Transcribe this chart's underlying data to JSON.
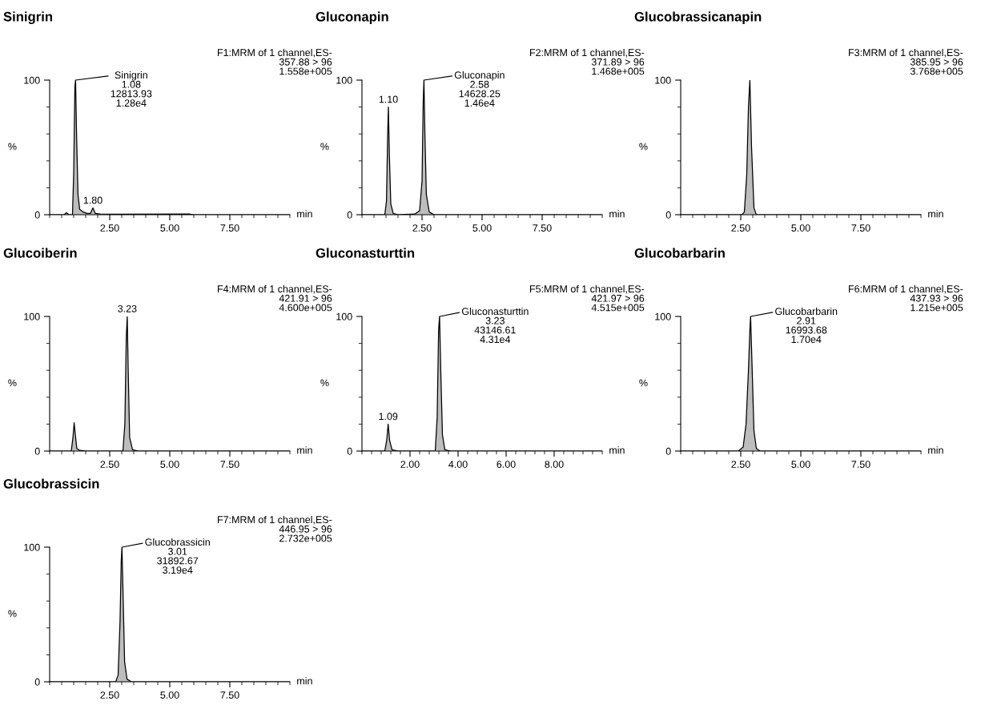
{
  "chart_data": [
    {
      "type": "area",
      "title": "Sinigrin",
      "subtitle": "F1:MRM of 1 channel,ES-\n357.88 > 96\n1.558e+005",
      "xlabel": "min",
      "ylabel": "%",
      "color": "#bdbdbd",
      "xlim": [
        0,
        10
      ],
      "xticks": [
        {
          "value": 2.5,
          "label": "2.50"
        },
        {
          "value": 5,
          "label": "5.00"
        },
        {
          "value": 7.5,
          "label": "7.50"
        }
      ],
      "ylim": [
        0,
        100
      ],
      "yticks": [
        0,
        100
      ],
      "x": [
        0,
        0.6,
        0.7,
        0.8,
        0.95,
        1.0,
        1.05,
        1.08,
        1.12,
        1.18,
        1.25,
        1.4,
        1.55,
        1.7,
        1.8,
        1.9,
        2.1,
        3.0,
        5.8,
        6.0,
        10
      ],
      "values": [
        0,
        0,
        1.5,
        0,
        0,
        30,
        95,
        100,
        60,
        15,
        4,
        2,
        1,
        1,
        5,
        1,
        0.5,
        0.3,
        0.5,
        0,
        0
      ],
      "annotations": [
        {
          "text": "Sinigrin\n1.08\n12813.93\n1.28e4",
          "x": 1.08,
          "y": 100
        },
        {
          "text": "1.80",
          "x": 1.8,
          "y": 5
        }
      ]
    },
    {
      "type": "area",
      "title": "Gluconapin",
      "subtitle": "F2:MRM of 1 channel,ES-\n371.89 > 96\n1.468e+005",
      "xlabel": "min",
      "ylabel": "%",
      "color": "#bdbdbd",
      "xlim": [
        0,
        10
      ],
      "xticks": [
        {
          "value": 2.5,
          "label": "2.50"
        },
        {
          "value": 5,
          "label": "5.00"
        },
        {
          "value": 7.5,
          "label": "7.50"
        }
      ],
      "ylim": [
        0,
        100
      ],
      "yticks": [
        0,
        100
      ],
      "x": [
        0,
        0.95,
        1.02,
        1.07,
        1.1,
        1.14,
        1.2,
        1.3,
        1.5,
        2.2,
        2.4,
        2.5,
        2.55,
        2.58,
        2.62,
        2.68,
        2.8,
        3.0,
        10
      ],
      "values": [
        0,
        0,
        10,
        60,
        80,
        45,
        8,
        1,
        0,
        0.5,
        3,
        25,
        85,
        100,
        60,
        15,
        2,
        0,
        0
      ],
      "annotations": [
        {
          "text": "1.10",
          "x": 1.1,
          "y": 80
        },
        {
          "text": "Gluconapin\n2.58\n14628.25\n1.46e4",
          "x": 2.58,
          "y": 100
        }
      ]
    },
    {
      "type": "area",
      "title": "Glucobrassicanapin",
      "subtitle": "F3:MRM of 1 channel,ES-\n385.95 > 96\n3.768e+005",
      "xlabel": "min",
      "ylabel": "%",
      "color": "#bdbdbd",
      "xlim": [
        0,
        10
      ],
      "xticks": [
        {
          "value": 2.5,
          "label": "2.50"
        },
        {
          "value": 5,
          "label": "5.00"
        },
        {
          "value": 7.5,
          "label": "7.50"
        }
      ],
      "ylim": [
        0,
        100
      ],
      "yticks": [
        0,
        100
      ],
      "x": [
        0,
        2.55,
        2.65,
        2.75,
        2.82,
        2.88,
        2.95,
        3.05,
        3.15,
        10
      ],
      "values": [
        0,
        0,
        2,
        30,
        80,
        100,
        50,
        5,
        0,
        0
      ]
    },
    {
      "type": "area",
      "title": "Glucoiberin",
      "subtitle": "F4:MRM of 1 channel,ES-\n421.91 > 96\n4.600e+005",
      "xlabel": "min",
      "ylabel": "%",
      "color": "#bdbdbd",
      "xlim": [
        0,
        10
      ],
      "xticks": [
        {
          "value": 2.5,
          "label": "2.50"
        },
        {
          "value": 5,
          "label": "5.00"
        },
        {
          "value": 7.5,
          "label": "7.50"
        }
      ],
      "ylim": [
        0,
        100
      ],
      "yticks": [
        0,
        100
      ],
      "x": [
        0,
        0.9,
        0.97,
        1.02,
        1.07,
        1.13,
        1.25,
        1.5,
        3.05,
        3.13,
        3.19,
        3.23,
        3.27,
        3.33,
        3.45,
        3.7,
        10
      ],
      "values": [
        0,
        0,
        10,
        21,
        12,
        2,
        0.5,
        0,
        0,
        20,
        85,
        100,
        60,
        10,
        1,
        0,
        0
      ],
      "annotations": [
        {
          "text": "3.23",
          "x": 3.23,
          "y": 100
        }
      ]
    },
    {
      "type": "area",
      "title": "Gluconasturttin",
      "subtitle": "F5:MRM of 1 channel,ES-\n421.97 > 96\n4.515e+005",
      "xlabel": "min",
      "ylabel": "%",
      "color": "#bdbdbd",
      "xlim": [
        0,
        10
      ],
      "xticks": [
        {
          "value": 2,
          "label": "2.00"
        },
        {
          "value": 4,
          "label": "4.00"
        },
        {
          "value": 6,
          "label": "6.00"
        },
        {
          "value": 8,
          "label": "8.00"
        }
      ],
      "ylim": [
        0,
        100
      ],
      "yticks": [
        0,
        100
      ],
      "x": [
        0,
        0.95,
        1.03,
        1.09,
        1.15,
        1.25,
        1.5,
        3.05,
        3.13,
        3.19,
        3.23,
        3.28,
        3.35,
        3.45,
        3.7,
        10
      ],
      "values": [
        0,
        0,
        8,
        20,
        8,
        1,
        0,
        0,
        25,
        90,
        100,
        60,
        12,
        1,
        0,
        0
      ],
      "annotations": [
        {
          "text": "1.09",
          "x": 1.09,
          "y": 20
        },
        {
          "text": "Gluconasturttin\n3.23\n43146.61\n4.31e4",
          "x": 3.23,
          "y": 100
        }
      ]
    },
    {
      "type": "area",
      "title": "Glucobarbarin",
      "subtitle": "F6:MRM of 1 channel,ES-\n437.93 > 96\n1.215e+005",
      "xlabel": "min",
      "ylabel": "%",
      "color": "#bdbdbd",
      "xlim": [
        0,
        10
      ],
      "xticks": [
        {
          "value": 2.5,
          "label": "2.50"
        },
        {
          "value": 5,
          "label": "5.00"
        },
        {
          "value": 7.5,
          "label": "7.50"
        }
      ],
      "ylim": [
        0,
        100
      ],
      "yticks": [
        0,
        100
      ],
      "x": [
        0,
        2.4,
        2.6,
        2.72,
        2.82,
        2.88,
        2.91,
        2.96,
        3.05,
        3.15,
        3.3,
        10
      ],
      "values": [
        0,
        0,
        3,
        20,
        60,
        90,
        100,
        70,
        15,
        2,
        0,
        0
      ],
      "annotations": [
        {
          "text": "Glucobarbarin\n2.91\n16993.68\n1.70e4",
          "x": 2.91,
          "y": 100
        }
      ]
    },
    {
      "type": "area",
      "title": "Glucobrassicin",
      "subtitle": "F7:MRM of 1 channel,ES-\n446.95 > 96\n2.732e+005",
      "xlabel": "min",
      "ylabel": "%",
      "color": "#bdbdbd",
      "xlim": [
        0,
        10
      ],
      "xticks": [
        {
          "value": 2.5,
          "label": "2.50"
        },
        {
          "value": 5,
          "label": "5.00"
        },
        {
          "value": 7.5,
          "label": "7.50"
        }
      ],
      "ylim": [
        0,
        100
      ],
      "yticks": [
        0,
        100
      ],
      "x": [
        0,
        2.75,
        2.85,
        2.93,
        2.98,
        3.01,
        3.05,
        3.12,
        3.22,
        3.4,
        10
      ],
      "values": [
        0,
        0,
        5,
        45,
        90,
        100,
        70,
        15,
        2,
        0,
        0
      ],
      "annotations": [
        {
          "text": "Glucobrassicin\n3.01\n31892.67\n3.19e4",
          "x": 3.01,
          "y": 100
        }
      ]
    }
  ]
}
